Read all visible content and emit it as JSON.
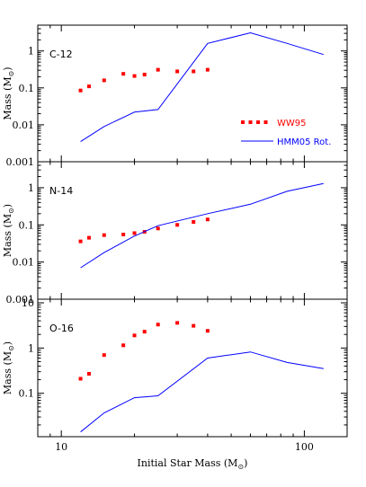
{
  "chart_data": [
    {
      "type": "line",
      "panel_label": "C-12",
      "xscale": "log",
      "yscale": "log",
      "xlim": [
        8,
        150
      ],
      "ylim": [
        0.001,
        5
      ],
      "ylabel_text": "Mass (M",
      "ylabel_sub": "⊙",
      "ylabel_close": ")",
      "y_ticks": [
        0.001,
        0.01,
        0.1,
        1
      ],
      "y_tick_labels": [
        "0.001",
        "0.01",
        "0.1",
        "1"
      ],
      "x_tick_labels": [
        "",
        ""
      ],
      "legend": {
        "placement": "lower-right",
        "entries": [
          {
            "name": "WW95",
            "style": "dotted",
            "color": "#ff0000"
          },
          {
            "name": "HMM05 Rot.",
            "style": "solid",
            "color": "#0000ff"
          }
        ]
      },
      "series": [
        {
          "name": "WW95",
          "style": "markers",
          "color": "#ff0000",
          "x": [
            12,
            13,
            15,
            18,
            20,
            22,
            25,
            30,
            35,
            40
          ],
          "y": [
            0.085,
            0.11,
            0.16,
            0.24,
            0.21,
            0.23,
            0.31,
            0.28,
            0.28,
            0.31
          ]
        },
        {
          "name": "HMM05 Rot.",
          "style": "line",
          "color": "#0000ff",
          "x": [
            12,
            15,
            20,
            25,
            40,
            60,
            85,
            120
          ],
          "y": [
            0.0035,
            0.009,
            0.022,
            0.026,
            1.6,
            3.1,
            1.6,
            0.8
          ]
        }
      ]
    },
    {
      "type": "line",
      "panel_label": "N-14",
      "xscale": "log",
      "yscale": "log",
      "xlim": [
        8,
        150
      ],
      "ylim": [
        0.001,
        5
      ],
      "ylabel_text": "Mass (M",
      "ylabel_sub": "⊙",
      "ylabel_close": ")",
      "y_ticks": [
        0.001,
        0.01,
        0.1,
        1
      ],
      "y_tick_labels": [
        "0.001",
        "0.01",
        "0.1",
        "1"
      ],
      "series": [
        {
          "name": "WW95",
          "style": "markers",
          "color": "#ff0000",
          "x": [
            12,
            13,
            15,
            18,
            20,
            22,
            25,
            30,
            35,
            40
          ],
          "y": [
            0.036,
            0.045,
            0.053,
            0.055,
            0.06,
            0.065,
            0.08,
            0.1,
            0.12,
            0.14
          ]
        },
        {
          "name": "HMM05 Rot.",
          "style": "line",
          "color": "#0000ff",
          "x": [
            12,
            15,
            20,
            25,
            40,
            60,
            85,
            120
          ],
          "y": [
            0.007,
            0.018,
            0.05,
            0.095,
            0.2,
            0.36,
            0.8,
            1.3
          ]
        }
      ]
    },
    {
      "type": "line",
      "panel_label": "O-16",
      "xscale": "log",
      "yscale": "log",
      "xlim": [
        8,
        150
      ],
      "ylim": [
        0.011,
        12
      ],
      "ylabel_text": "Mass (M",
      "ylabel_sub": "⊙",
      "ylabel_close": ")",
      "y_ticks": [
        0.1,
        1,
        10
      ],
      "y_tick_labels": [
        "0.1",
        "1",
        "10"
      ],
      "x_ticks": [
        10,
        100
      ],
      "x_tick_labels": [
        "10",
        "100"
      ],
      "xlabel_text": "Initial Star Mass (M",
      "xlabel_sub": "⊙",
      "xlabel_close": ")",
      "series": [
        {
          "name": "WW95",
          "style": "markers",
          "color": "#ff0000",
          "x": [
            12,
            13,
            15,
            18,
            20,
            22,
            25,
            30,
            35,
            40
          ],
          "y": [
            0.21,
            0.27,
            0.7,
            1.15,
            1.9,
            2.3,
            3.3,
            3.6,
            3.1,
            2.4
          ]
        },
        {
          "name": "HMM05 Rot.",
          "style": "line",
          "color": "#0000ff",
          "x": [
            12,
            15,
            20,
            25,
            40,
            60,
            85,
            120
          ],
          "y": [
            0.014,
            0.037,
            0.08,
            0.088,
            0.6,
            0.82,
            0.48,
            0.35
          ]
        }
      ]
    }
  ]
}
